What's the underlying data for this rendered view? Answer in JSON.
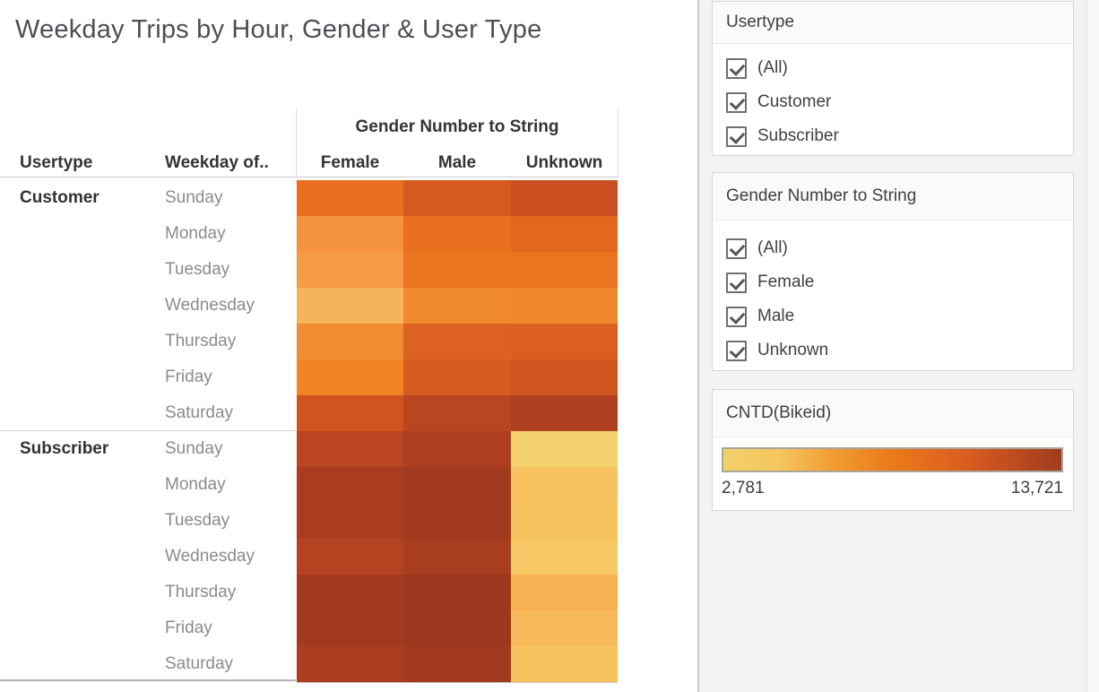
{
  "title": "Weekday Trips by Hour, Gender & User Type",
  "table": {
    "col_group_header": "Gender Number to String",
    "usertype_header": "Usertype",
    "weekday_header": "Weekday of..",
    "value_columns": [
      "Female",
      "Male",
      "Unknown"
    ]
  },
  "chart_data": {
    "type": "heatmap",
    "title": "Weekday Trips by Hour, Gender & User Type",
    "color_field": "CNTD(Bikeid)",
    "color_range": {
      "min": 2781,
      "max": 13721
    },
    "columns": [
      "Female",
      "Male",
      "Unknown"
    ],
    "row_groups": [
      {
        "usertype": "Customer",
        "rows": [
          {
            "weekday": "Sunday",
            "cells": [
              {
                "color": "#ea6e1e",
                "value_estimate": 9000
              },
              {
                "color": "#d45a20",
                "value_estimate": 10800
              },
              {
                "color": "#c94e20",
                "value_estimate": 11400
              }
            ]
          },
          {
            "weekday": "Monday",
            "cells": [
              {
                "color": "#f5923e",
                "value_estimate": 6800
              },
              {
                "color": "#e9701e",
                "value_estimate": 9000
              },
              {
                "color": "#e2671f",
                "value_estimate": 9700
              }
            ]
          },
          {
            "weekday": "Tuesday",
            "cells": [
              {
                "color": "#f59b45",
                "value_estimate": 6400
              },
              {
                "color": "#ec761f",
                "value_estimate": 8600
              },
              {
                "color": "#ea741f",
                "value_estimate": 8700
              }
            ]
          },
          {
            "weekday": "Wednesday",
            "cells": [
              {
                "color": "#f6b45a",
                "value_estimate": 5200
              },
              {
                "color": "#f28a2e",
                "value_estimate": 7400
              },
              {
                "color": "#f0872b",
                "value_estimate": 7500
              }
            ]
          },
          {
            "weekday": "Thursday",
            "cells": [
              {
                "color": "#f28c32",
                "value_estimate": 7300
              },
              {
                "color": "#dd6120",
                "value_estimate": 10000
              },
              {
                "color": "#da5f20",
                "value_estimate": 10200
              }
            ]
          },
          {
            "weekday": "Friday",
            "cells": [
              {
                "color": "#f18327",
                "value_estimate": 7800
              },
              {
                "color": "#d55b20",
                "value_estimate": 10700
              },
              {
                "color": "#d1551f",
                "value_estimate": 11000
              }
            ]
          },
          {
            "weekday": "Saturday",
            "cells": [
              {
                "color": "#d0541f",
                "value_estimate": 11100
              },
              {
                "color": "#ba4521",
                "value_estimate": 12300
              },
              {
                "color": "#ae3f20",
                "value_estimate": 13000
              }
            ]
          }
        ]
      },
      {
        "usertype": "Subscriber",
        "rows": [
          {
            "weekday": "Sunday",
            "cells": [
              {
                "color": "#bc4521",
                "value_estimate": 12200
              },
              {
                "color": "#ad3f20",
                "value_estimate": 13000
              },
              {
                "color": "#f2d06b",
                "value_estimate": 2900
              }
            ]
          },
          {
            "weekday": "Monday",
            "cells": [
              {
                "color": "#aa3d20",
                "value_estimate": 13200
              },
              {
                "color": "#a23a1f",
                "value_estimate": 13600
              },
              {
                "color": "#f8c260",
                "value_estimate": 3900
              }
            ]
          },
          {
            "weekday": "Tuesday",
            "cells": [
              {
                "color": "#aa3d20",
                "value_estimate": 13200
              },
              {
                "color": "#a23a1f",
                "value_estimate": 13600
              },
              {
                "color": "#f7c35f",
                "value_estimate": 3800
              }
            ]
          },
          {
            "weekday": "Wednesday",
            "cells": [
              {
                "color": "#b54220",
                "value_estimate": 12600
              },
              {
                "color": "#a93d20",
                "value_estimate": 13200
              },
              {
                "color": "#f6c765",
                "value_estimate": 3550
              }
            ]
          },
          {
            "weekday": "Thursday",
            "cells": [
              {
                "color": "#a33a20",
                "value_estimate": 13500
              },
              {
                "color": "#9c381e",
                "value_estimate": 13700
              },
              {
                "color": "#f8b152",
                "value_estimate": 4750
              }
            ]
          },
          {
            "weekday": "Friday",
            "cells": [
              {
                "color": "#a33a20",
                "value_estimate": 13500
              },
              {
                "color": "#9c381e",
                "value_estimate": 13700
              },
              {
                "color": "#f8b85c",
                "value_estimate": 4300
              }
            ]
          },
          {
            "weekday": "Saturday",
            "cells": [
              {
                "color": "#ab3e20",
                "value_estimate": 13100
              },
              {
                "color": "#a23a1f",
                "value_estimate": 13600
              },
              {
                "color": "#f7c35e",
                "value_estimate": 3800
              }
            ]
          }
        ]
      }
    ],
    "legend_position": "right"
  },
  "filters": [
    {
      "title": "Usertype",
      "options": [
        {
          "label": "(All)",
          "checked": true
        },
        {
          "label": "Customer",
          "checked": true
        },
        {
          "label": "Subscriber",
          "checked": true
        }
      ]
    },
    {
      "title": "Gender Number to String",
      "options": [
        {
          "label": "(All)",
          "checked": true
        },
        {
          "label": "Female",
          "checked": true
        },
        {
          "label": "Male",
          "checked": true
        },
        {
          "label": "Unknown",
          "checked": true
        }
      ]
    }
  ],
  "legend": {
    "title": "CNTD(Bikeid)",
    "min_label": "2,781",
    "max_label": "13,721",
    "gradient": [
      "#f2d169",
      "#f5c55e",
      "#f09a30",
      "#ea7a1a",
      "#e0641e",
      "#c54e20",
      "#a03c1e"
    ]
  }
}
